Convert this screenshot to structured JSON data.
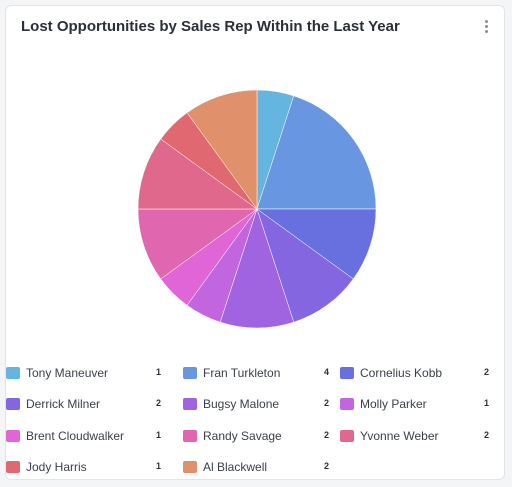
{
  "card": {
    "title": "Lost Opportunities by Sales Rep Within the Last Year",
    "menu_icon": "kebab-menu-icon"
  },
  "chart_data": {
    "type": "pie",
    "title": "Lost Opportunities by Sales Rep Within the Last Year",
    "categories": [
      "Tony Maneuver",
      "Fran Turkleton",
      "Cornelius Kobb",
      "Derrick Milner",
      "Bugsy Malone",
      "Molly Parker",
      "Brent Cloudwalker",
      "Randy Savage",
      "Yvonne Weber",
      "Jody Harris",
      "Al Blackwell"
    ],
    "values": [
      1,
      4,
      2,
      2,
      2,
      1,
      1,
      2,
      2,
      1,
      2
    ],
    "colors": [
      "#64b5e0",
      "#6896e0",
      "#6870e0",
      "#8466e0",
      "#a064e0",
      "#c266e0",
      "#e066d8",
      "#e066b0",
      "#e0688c",
      "#e06870",
      "#e0906a"
    ],
    "legend_position": "bottom"
  }
}
